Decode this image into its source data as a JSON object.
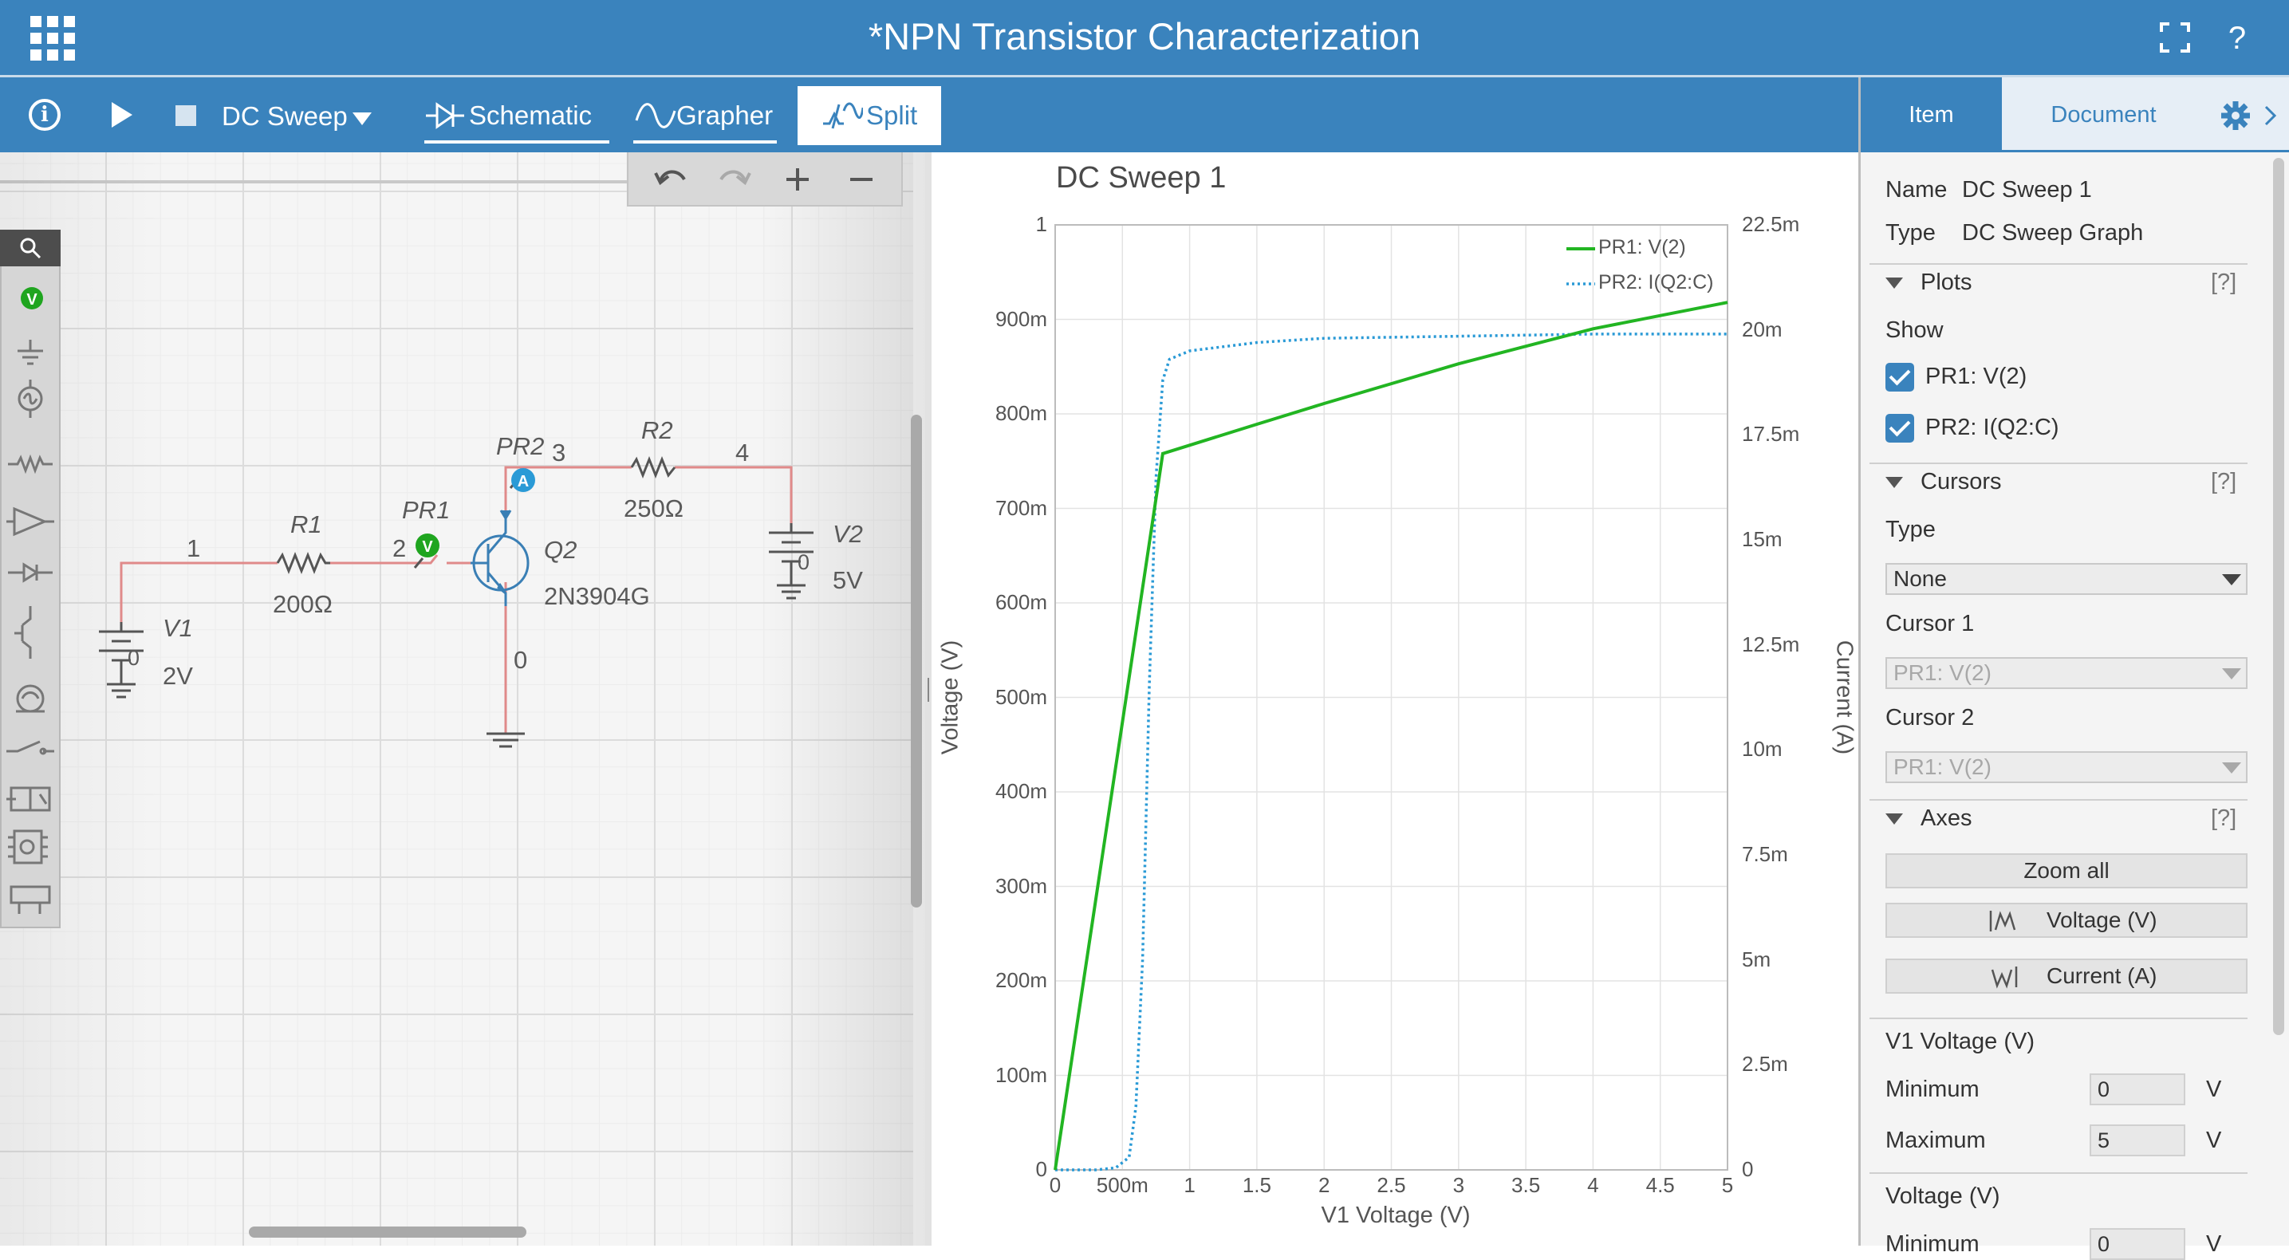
{
  "header": {
    "title": "*NPN Transistor Characterization",
    "help": "?"
  },
  "toolbar": {
    "analysis": "DC Sweep",
    "tabs": {
      "schematic": "Schematic",
      "grapher": "Grapher",
      "split": "Split"
    }
  },
  "schematic": {
    "nodes": {
      "n1": "1",
      "n2": "2",
      "n3": "3",
      "n4": "4",
      "n0": "0"
    },
    "R1": {
      "name": "R1",
      "value": "200Ω"
    },
    "R2": {
      "name": "R2",
      "value": "250Ω"
    },
    "Q2": {
      "name": "Q2",
      "model": "2N3904G"
    },
    "V1": {
      "name": "V1",
      "value": "2V",
      "node": "0"
    },
    "V2": {
      "name": "V2",
      "value": "5V",
      "node": "0"
    },
    "PR1": {
      "name": "PR1",
      "badge": "V"
    },
    "PR2": {
      "name": "PR2",
      "badge": "A"
    },
    "palette_badge": "V"
  },
  "chart": {
    "title": "DC Sweep 1",
    "legend": [
      "PR1: V(2)",
      "PR2: I(Q2:C)"
    ],
    "xlabel": "V1 Voltage (V)",
    "ylabel_left": "Voltage (V)",
    "ylabel_right": "Current (A)",
    "x_ticks": [
      "0",
      "500m",
      "1",
      "1.5",
      "2",
      "2.5",
      "3",
      "3.5",
      "4",
      "4.5",
      "5"
    ],
    "y_left_ticks": [
      "0",
      "100m",
      "200m",
      "300m",
      "400m",
      "500m",
      "600m",
      "700m",
      "800m",
      "900m",
      "1"
    ],
    "y_right_ticks": [
      "0",
      "2.5m",
      "5m",
      "7.5m",
      "10m",
      "12.5m",
      "15m",
      "17.5m",
      "20m",
      "22.5m"
    ],
    "colors": {
      "pr1": "#22b522",
      "pr2": "#2a9ad6"
    }
  },
  "chart_data": {
    "type": "line",
    "title": "DC Sweep 1",
    "xlabel": "V1 Voltage (V)",
    "ylabel": "Voltage (V)",
    "y2label": "Current (A)",
    "xlim": [
      0,
      5
    ],
    "ylim": [
      0,
      1
    ],
    "y2lim": [
      0,
      0.0225
    ],
    "grid": true,
    "legend_position": "top-right",
    "series": [
      {
        "name": "PR1: V(2)",
        "axis": "left",
        "style": "solid",
        "x": [
          0,
          0.8,
          1.5,
          2,
          3,
          4,
          5
        ],
        "y": [
          0,
          0.758,
          0.789,
          0.811,
          0.853,
          0.89,
          0.918
        ]
      },
      {
        "name": "PR2: I(Q2:C)",
        "axis": "right",
        "style": "dotted",
        "x": [
          0,
          0.3,
          0.45,
          0.55,
          0.6,
          0.65,
          0.7,
          0.75,
          0.8,
          0.85,
          1.0,
          1.5,
          2,
          3,
          4,
          5
        ],
        "y": [
          0,
          0,
          5e-05,
          0.0003,
          0.0015,
          0.005,
          0.0115,
          0.0165,
          0.0188,
          0.0193,
          0.0195,
          0.0197,
          0.0198,
          0.01985,
          0.0199,
          0.0199
        ]
      }
    ]
  },
  "panel": {
    "tabs": {
      "item": "Item",
      "document": "Document"
    },
    "name_label": "Name",
    "name_value": "DC Sweep 1",
    "type_label": "Type",
    "type_value": "DC Sweep Graph",
    "plots": {
      "title": "Plots",
      "help": "[?]",
      "show_label": "Show",
      "items": [
        "PR1: V(2)",
        "PR2: I(Q2:C)"
      ]
    },
    "cursors": {
      "title": "Cursors",
      "help": "[?]",
      "type_label": "Type",
      "type_value": "None",
      "cursor1_label": "Cursor 1",
      "cursor1_value": "PR1: V(2)",
      "cursor2_label": "Cursor 2",
      "cursor2_value": "PR1: V(2)"
    },
    "axes": {
      "title": "Axes",
      "help": "[?]",
      "zoom_all": "Zoom all",
      "voltage_btn": "Voltage (V)",
      "current_btn": "Current (A)"
    },
    "v1_voltage": {
      "title": "V1 Voltage (V)",
      "min_label": "Minimum",
      "min_value": "0",
      "min_unit": "V",
      "max_label": "Maximum",
      "max_value": "5",
      "max_unit": "V"
    },
    "voltage": {
      "title": "Voltage (V)",
      "min_label": "Minimum",
      "min_value": "0",
      "min_unit": "V"
    }
  }
}
